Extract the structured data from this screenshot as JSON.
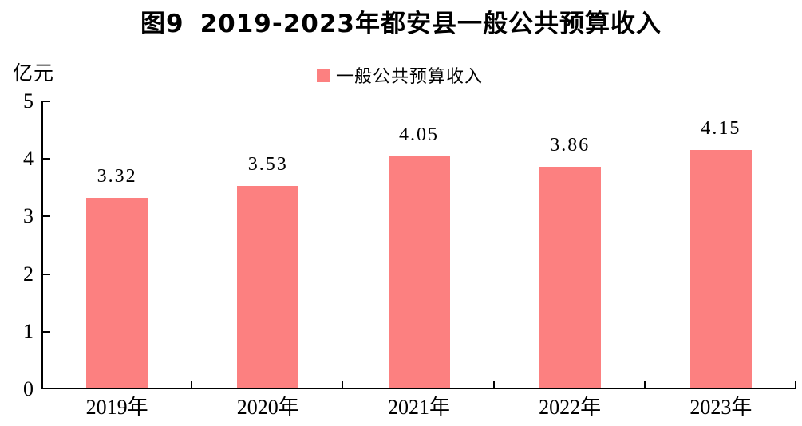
{
  "title": {
    "prefix": "图9",
    "text": "2019-2023年都安县一般公共预算收入"
  },
  "unit_label": "亿元",
  "legend": {
    "label": "一般公共预算收入",
    "swatch_color": "#FC8080"
  },
  "chart_data": {
    "type": "bar",
    "title": "图9 2019-2023年都安县一般公共预算收入",
    "categories": [
      "2019年",
      "2020年",
      "2021年",
      "2022年",
      "2023年"
    ],
    "values": [
      3.32,
      3.53,
      4.05,
      3.86,
      4.15
    ],
    "value_labels": [
      "3.32",
      "3.53",
      "4.05",
      "3.86",
      "4.15"
    ],
    "xlabel": "",
    "ylabel": "亿元",
    "ylim": [
      0,
      5
    ],
    "yticks": [
      0,
      1,
      2,
      3,
      4,
      5
    ],
    "legend": [
      "一般公共预算收入"
    ],
    "legend_position": "top-center",
    "grid": false,
    "bar_color": "#FC8080",
    "axis_color": "#000000"
  }
}
